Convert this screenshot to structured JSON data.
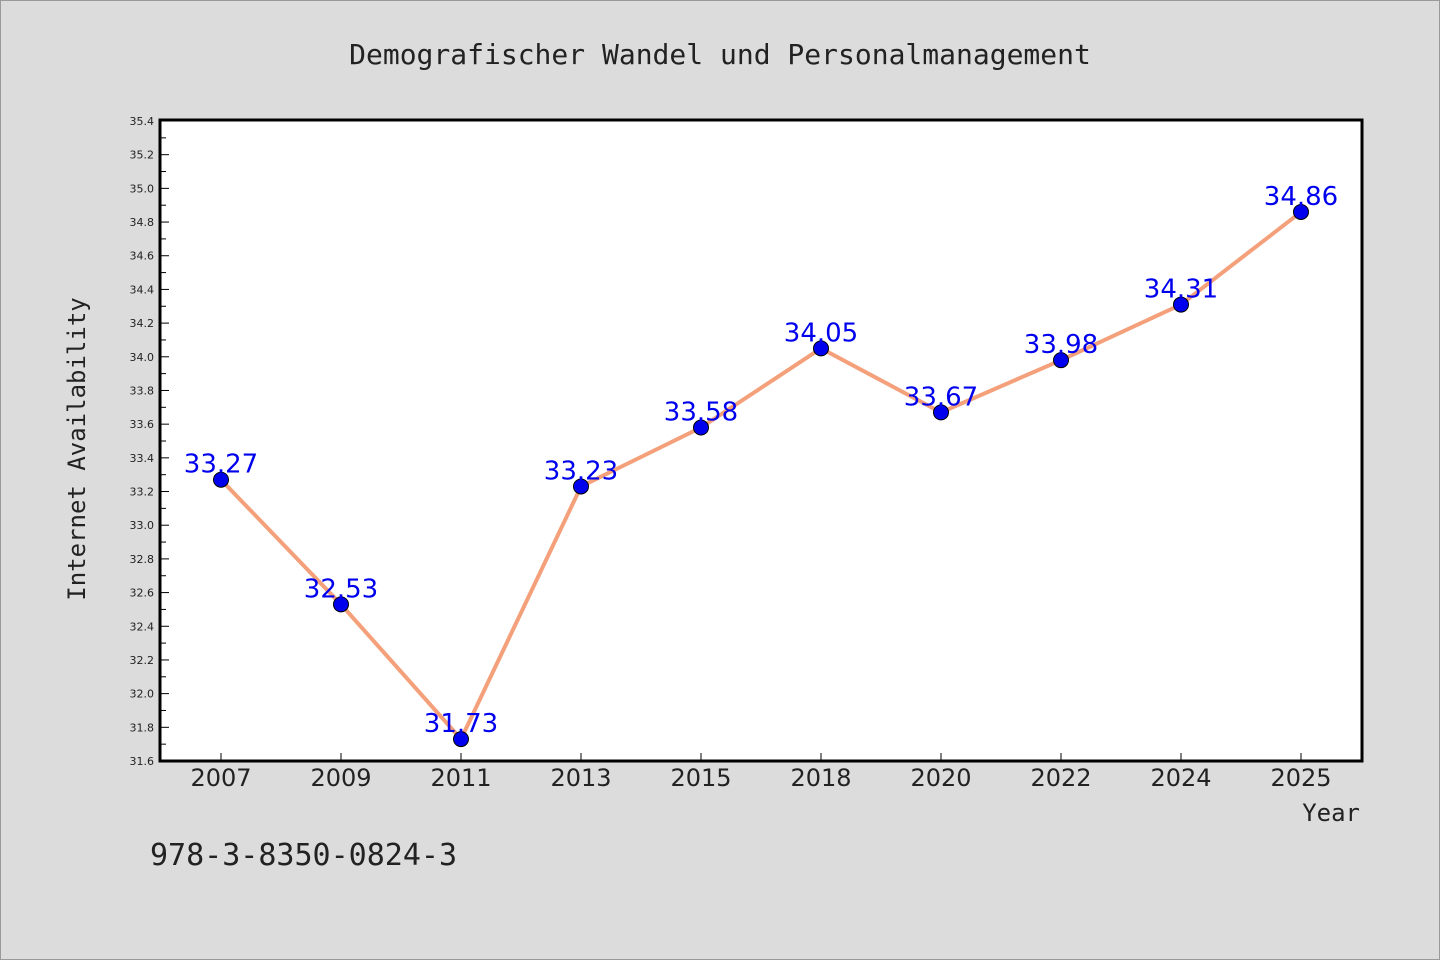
{
  "chart_data": {
    "type": "line",
    "title": "Demografischer Wandel und Personalmanagement",
    "xlabel": "Year",
    "ylabel": "Internet Availability",
    "categories": [
      "2007",
      "2009",
      "2011",
      "2013",
      "2015",
      "2018",
      "2020",
      "2022",
      "2024",
      "2025"
    ],
    "series": [
      {
        "values": [
          33.27,
          32.53,
          31.73,
          33.23,
          33.58,
          34.05,
          33.67,
          33.98,
          34.31,
          34.86
        ],
        "data_labels": [
          "33.27",
          "32.53",
          "31.73",
          "33.23",
          "33.58",
          "34.05",
          "33.67",
          "33.98",
          "34.31",
          "34.86"
        ]
      }
    ],
    "ylim": [
      31.6,
      35.4
    ],
    "yticks": [
      "31.6",
      "31.8",
      "32.0",
      "32.2",
      "32.4",
      "32.6",
      "32.8",
      "33.0",
      "33.2",
      "33.4",
      "33.6",
      "33.8",
      "34.0",
      "34.2",
      "34.4",
      "34.6",
      "34.8",
      "35.0",
      "35.2",
      "35.4"
    ],
    "grid": false,
    "legend": "none",
    "colors": {
      "background": "#dcdcdc",
      "plot_background": "#ffffff",
      "line": "#f4a07a",
      "marker": "#0000ee",
      "data_label": "#0000ee"
    }
  },
  "footer": {
    "isbn": "978-3-8350-0824-3"
  }
}
